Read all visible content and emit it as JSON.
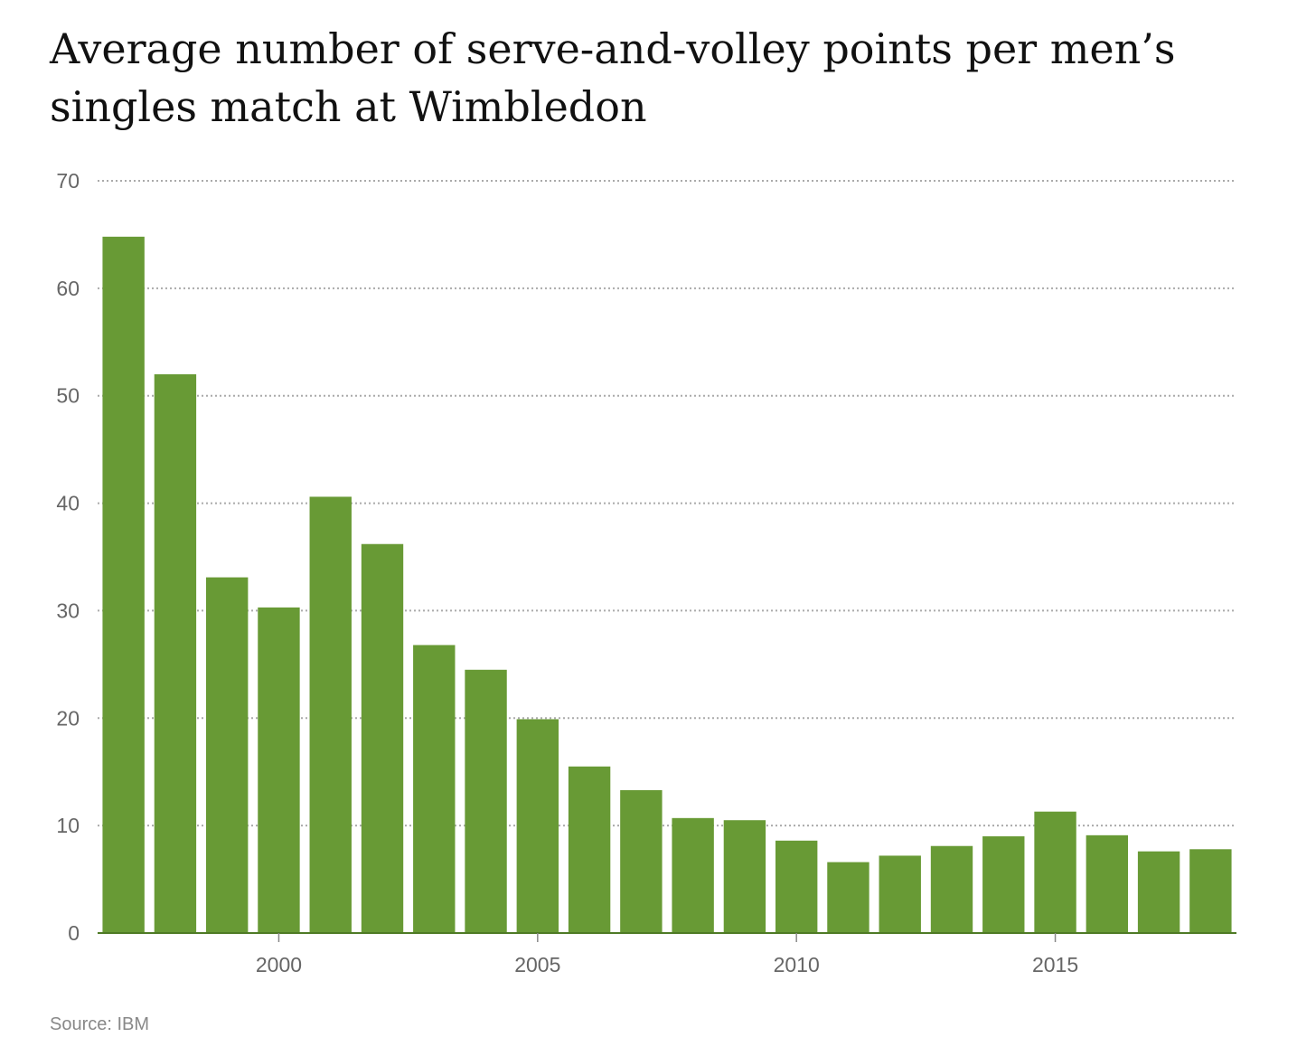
{
  "chart_data": {
    "type": "bar",
    "title": "Average number of serve-and-volley points per men’s singles match at Wimbledon",
    "x": [
      1997,
      1998,
      1999,
      2000,
      2001,
      2002,
      2003,
      2004,
      2005,
      2006,
      2007,
      2008,
      2009,
      2010,
      2011,
      2012,
      2013,
      2014,
      2015,
      2016,
      2017,
      2018
    ],
    "values": [
      64.8,
      52.0,
      33.1,
      30.3,
      40.6,
      36.2,
      26.8,
      24.5,
      19.9,
      15.5,
      13.3,
      10.7,
      10.5,
      8.6,
      6.6,
      7.2,
      8.1,
      9.0,
      11.3,
      9.1,
      7.6,
      7.8
    ],
    "xticks": [
      2000,
      2005,
      2010,
      2015
    ],
    "yticks": [
      0,
      10,
      20,
      30,
      40,
      50,
      60,
      70
    ],
    "ylim": [
      0,
      70
    ],
    "xlabel": "",
    "ylabel": "",
    "grid": true,
    "bar_color": "#689a35"
  },
  "source": "Source: IBM"
}
